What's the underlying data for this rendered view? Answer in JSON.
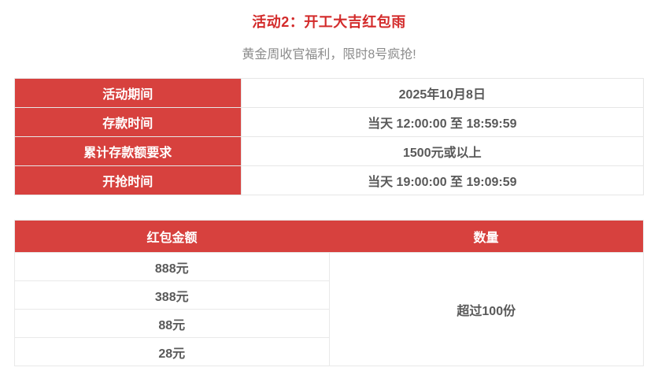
{
  "page": {
    "title": "活动2：开工大吉红包雨",
    "subtitle": "黄金周收官福利，限时8号疯抢!"
  },
  "info_table": {
    "rows": [
      {
        "label": "活动期间",
        "value": "2025年10月8日"
      },
      {
        "label": "存款时间",
        "value": "当天 12:00:00 至 18:59:59"
      },
      {
        "label": "累计存款额要求",
        "value": "1500元或以上"
      },
      {
        "label": "开抢时间",
        "value": "当天 19:00:00 至 19:09:59"
      }
    ]
  },
  "prize_table": {
    "headers": [
      "红包金额",
      "数量"
    ],
    "amounts": [
      "888元",
      "388元",
      "88元",
      "28元"
    ],
    "quantity": "超过100份"
  },
  "colors": {
    "accent_red": "#d7413e",
    "title_red": "#d32b2b",
    "value_text": "#595959",
    "subtitle_gray": "#8c8c8c",
    "border_gray": "#e6e6e6",
    "header_text": "#ffffff"
  }
}
